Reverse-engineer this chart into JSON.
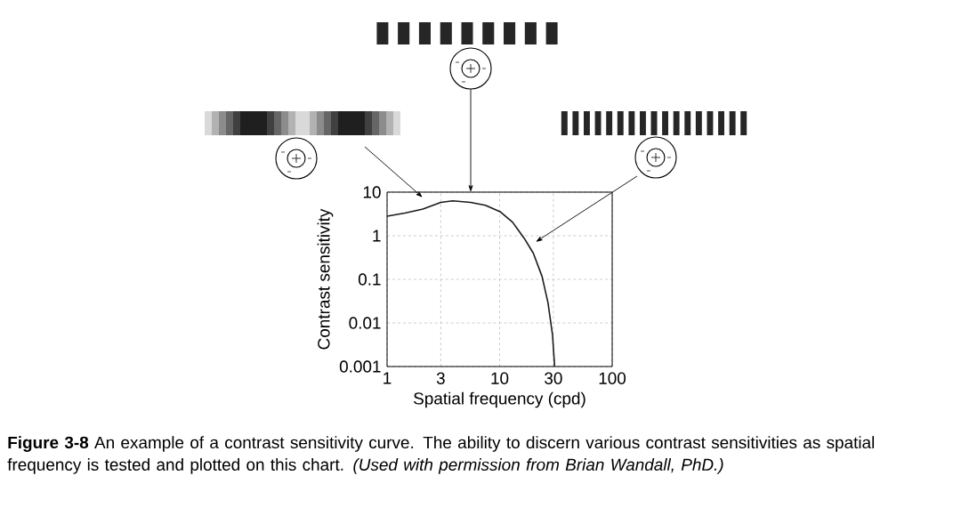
{
  "chart_data": {
    "type": "line",
    "xlabel": "Spatial frequency (cpd)",
    "ylabel": "Contrast sensitivity",
    "x": [
      1,
      1.44,
      2.08,
      3.0,
      3.83,
      5.52,
      7.48,
      10.2,
      13,
      16.5,
      19.9,
      23.8,
      26.9,
      29.5,
      30.8
    ],
    "values": [
      2.8,
      3.3,
      4.1,
      5.8,
      6.3,
      5.8,
      5.0,
      3.5,
      2.06,
      0.88,
      0.4,
      0.117,
      0.029,
      0.0053,
      0.001
    ],
    "color": "#1a1a1a",
    "marker": "none",
    "line_style": "solid",
    "log": "xy",
    "grid": true,
    "xlim": [
      1,
      100
    ],
    "ylim": [
      0.001,
      10
    ],
    "xticks": [
      1,
      3,
      10,
      30,
      100
    ],
    "yticks": [
      0.001,
      0.01,
      0.1,
      1,
      10
    ],
    "annotations": [
      "**Figure 3-8**   An example of a contrast sensitivity curve. The ability to discern various contrast sensitivities as spatial frequency is tested and plotted on this chart. *(Used with permission from Brian Wandall, PhD.)*"
    ]
  }
}
